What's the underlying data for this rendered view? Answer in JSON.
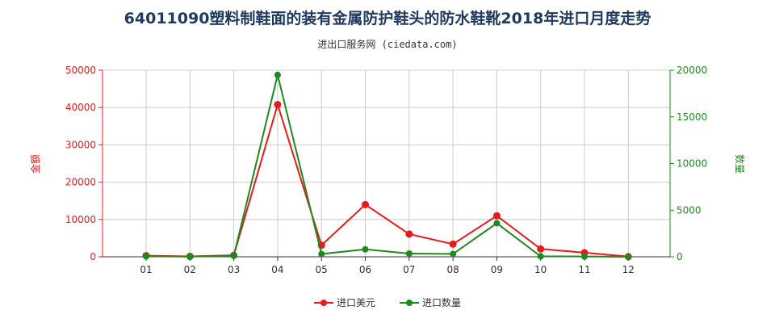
{
  "chart_data": {
    "type": "line",
    "title": "64011090塑料制鞋面的装有金属防护鞋头的防水鞋靴2018年进口月度走势",
    "subtitle": "进出口服务网 (ciedata.com)",
    "categories": [
      "01",
      "02",
      "03",
      "04",
      "05",
      "06",
      "07",
      "08",
      "09",
      "10",
      "11",
      "12"
    ],
    "y_left": {
      "label": "金额",
      "min": 0,
      "max": 50000,
      "ticks": [
        "0",
        "10000",
        "20000",
        "30000",
        "40000",
        "50000"
      ],
      "color": "#e8191b"
    },
    "y_right": {
      "label": "数量",
      "min": 0,
      "max": 20000,
      "ticks": [
        "0",
        "5000",
        "10000",
        "15000",
        "20000"
      ],
      "color": "#1e8a1e"
    },
    "series": [
      {
        "name": "进口美元",
        "axis": "left",
        "color": "#e8191b",
        "values": [
          300,
          100,
          400,
          40800,
          3100,
          14000,
          6100,
          3400,
          11000,
          2100,
          1100,
          50
        ]
      },
      {
        "name": "进口数量",
        "axis": "right",
        "color": "#1e8a1e",
        "values": [
          50,
          20,
          100,
          19500,
          300,
          800,
          350,
          300,
          3600,
          50,
          30,
          10
        ]
      }
    ],
    "grid": true,
    "legend_position": "bottom"
  }
}
